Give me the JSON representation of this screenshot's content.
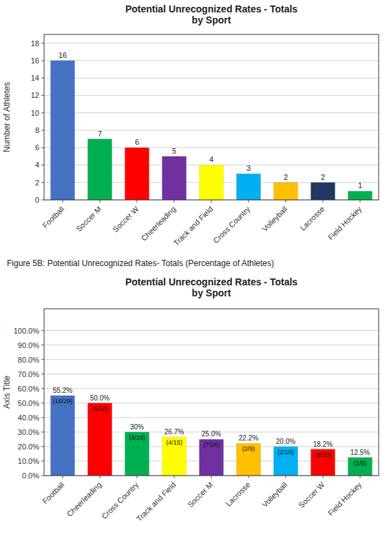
{
  "chart_data": [
    {
      "type": "bar",
      "title": "Potential Unrecognized Rates - Totals\nby Sport",
      "categories": [
        "Football",
        "Soccer M",
        "Soccer W",
        "Cheerleading",
        "Track and Field",
        "Cross Country",
        "Volleyball",
        "Lacrosse",
        "Field Hockey"
      ],
      "values": [
        16,
        7,
        6,
        5,
        4,
        3,
        2,
        2,
        1
      ],
      "colors": [
        "#4472C4",
        "#00B050",
        "#FF0000",
        "#7030A0",
        "#FFFF00",
        "#00B0F0",
        "#FFC000",
        "#1F3864",
        "#00B050"
      ],
      "ylabel": "Number of Athletes",
      "ylim": [
        0,
        19
      ],
      "yticks": [
        0,
        2,
        4,
        6,
        8,
        10,
        12,
        14,
        16,
        18
      ],
      "grid": true,
      "data_labels": true
    },
    {
      "type": "bar",
      "title": "Potential Unrecognized Rates - Totals\nby Sport",
      "annotations": [
        "Figure 5B: Potential Unrecognized Rates- Totals (Percentage of Athletes)"
      ],
      "categories": [
        "Football",
        "Cheerleading",
        "Cross Country",
        "Track and Field",
        "Soccer M",
        "Lacrosse",
        "Volleyball",
        "Soccer W",
        "Field Hockey"
      ],
      "values": [
        55.2,
        50.0,
        30.0,
        26.7,
        25.0,
        22.2,
        20.0,
        18.2,
        12.5
      ],
      "value_labels": [
        "55.2%",
        "50.0%",
        "30%",
        "26.7%",
        "25.0%",
        "22.2%",
        "20.0%",
        "18.2%",
        "12.5%"
      ],
      "fraction_labels": [
        "(16/29)",
        "(5/10)",
        "(3/10)",
        "(4/15)",
        "(7/28)",
        "(2/9)",
        "(2/10)",
        "(6/33)",
        "(1/8)"
      ],
      "colors": [
        "#4472C4",
        "#FF0000",
        "#00B050",
        "#FFFF00",
        "#7030A0",
        "#FFC000",
        "#00B0F0",
        "#FF0000",
        "#00B050"
      ],
      "ylabel": "Axis Title",
      "ylim": [
        0,
        115
      ],
      "yticks": [
        {
          "value": 0,
          "label": "0.0%"
        },
        {
          "value": 10,
          "label": "10.0%"
        },
        {
          "value": 20,
          "label": "20.0%"
        },
        {
          "value": 30,
          "label": "30.0%"
        },
        {
          "value": 40,
          "label": "40.0%"
        },
        {
          "value": 50,
          "label": "50.0%"
        },
        {
          "value": 60,
          "label": "60.0%"
        },
        {
          "value": 70,
          "label": "70.0%"
        },
        {
          "value": 80,
          "label": "80.0%"
        },
        {
          "value": 90,
          "label": "90.0%"
        },
        {
          "value": 100,
          "label": "100.0%"
        }
      ],
      "grid": true,
      "data_labels": true
    }
  ]
}
